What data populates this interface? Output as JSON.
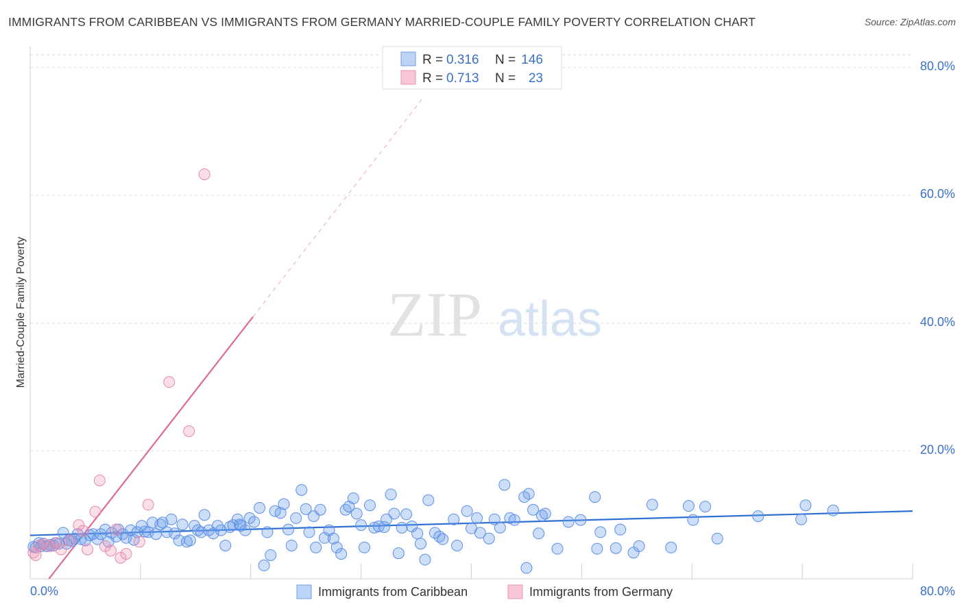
{
  "title": "IMMIGRANTS FROM CARIBBEAN VS IMMIGRANTS FROM GERMANY MARRIED-COUPLE FAMILY POVERTY CORRELATION CHART",
  "source": "Source: ZipAtlas.com",
  "watermark": {
    "zip": "ZIP",
    "atlas": "atlas"
  },
  "colors": {
    "blue": "#5b8ee6",
    "blue_fill": "rgba(110,160,235,0.35)",
    "blue_line": "#2f6fd4",
    "pink": "#e58aa8",
    "pink_fill": "rgba(240,150,180,0.30)",
    "pink_line": "#e06890",
    "tick_text": "#3a6fc9",
    "grid": "#dddddd"
  },
  "legend_box": {
    "rows": [
      {
        "r_label": "R =",
        "r_value": "0.316",
        "n_label": "N =",
        "n_value": "146"
      },
      {
        "r_label": "R =",
        "r_value": "0.713",
        "n_label": "N =",
        "n_value": "23"
      }
    ]
  },
  "chart_data": {
    "type": "scatter",
    "title": "IMMIGRANTS FROM CARIBBEAN VS IMMIGRANTS FROM GERMANY MARRIED-COUPLE FAMILY POVERTY CORRELATION CHART",
    "xlabel": "",
    "ylabel": "Married-Couple Family Poverty",
    "xlim": [
      0,
      80
    ],
    "ylim": [
      0,
      82
    ],
    "x_tick_labels": [
      "0.0%",
      "80.0%"
    ],
    "y_ticks": [
      20,
      40,
      60,
      80
    ],
    "y_tick_labels": [
      "20.0%",
      "40.0%",
      "60.0%",
      "80.0%"
    ],
    "legend": [
      "Immigrants from Caribbean",
      "Immigrants from Germany"
    ],
    "series": [
      {
        "name": "Immigrants from Caribbean",
        "r": 0.316,
        "n": 146,
        "trend": {
          "x0": 0,
          "y0": 6.8,
          "x1": 80,
          "y1": 10.6
        },
        "points": [
          [
            0.3,
            5.0
          ],
          [
            0.5,
            4.9
          ],
          [
            0.8,
            5.6
          ],
          [
            1.0,
            5.1
          ],
          [
            1.2,
            5.5
          ],
          [
            1.5,
            5.1
          ],
          [
            1.8,
            5.3
          ],
          [
            2.1,
            5.2
          ],
          [
            2.3,
            5.6
          ],
          [
            2.6,
            5.5
          ],
          [
            3.0,
            7.2
          ],
          [
            3.3,
            5.5
          ],
          [
            3.5,
            6.0
          ],
          [
            3.8,
            5.9
          ],
          [
            4.0,
            6.3
          ],
          [
            4.3,
            7.0
          ],
          [
            4.6,
            6.2
          ],
          [
            5.0,
            6.0
          ],
          [
            5.4,
            6.8
          ],
          [
            5.7,
            7.0
          ],
          [
            6.1,
            6.2
          ],
          [
            6.4,
            7.0
          ],
          [
            6.8,
            7.7
          ],
          [
            7.1,
            5.8
          ],
          [
            7.4,
            7.2
          ],
          [
            7.8,
            6.6
          ],
          [
            8.0,
            7.7
          ],
          [
            8.4,
            7.0
          ],
          [
            8.7,
            6.4
          ],
          [
            9.1,
            7.6
          ],
          [
            9.4,
            6.1
          ],
          [
            9.7,
            7.3
          ],
          [
            10.1,
            8.3
          ],
          [
            10.4,
            7.4
          ],
          [
            10.7,
            7.3
          ],
          [
            11.1,
            8.8
          ],
          [
            11.4,
            7.0
          ],
          [
            11.8,
            8.5
          ],
          [
            12.0,
            8.8
          ],
          [
            12.4,
            7.3
          ],
          [
            12.8,
            9.3
          ],
          [
            13.1,
            7.1
          ],
          [
            13.5,
            6.0
          ],
          [
            13.8,
            8.5
          ],
          [
            14.2,
            5.8
          ],
          [
            14.5,
            6.0
          ],
          [
            14.9,
            8.3
          ],
          [
            15.2,
            7.6
          ],
          [
            15.5,
            7.3
          ],
          [
            15.8,
            10.0
          ],
          [
            16.2,
            7.6
          ],
          [
            16.6,
            7.1
          ],
          [
            17.0,
            8.3
          ],
          [
            17.3,
            7.6
          ],
          [
            17.7,
            5.2
          ],
          [
            18.1,
            8.1
          ],
          [
            18.4,
            8.4
          ],
          [
            18.8,
            9.3
          ],
          [
            19.1,
            8.3
          ],
          [
            19.5,
            7.6
          ],
          [
            19.9,
            9.5
          ],
          [
            20.3,
            8.9
          ],
          [
            20.8,
            11.1
          ],
          [
            21.2,
            2.1
          ],
          [
            21.5,
            7.3
          ],
          [
            21.8,
            3.7
          ],
          [
            22.2,
            10.6
          ],
          [
            22.7,
            10.3
          ],
          [
            23.0,
            11.7
          ],
          [
            23.4,
            7.7
          ],
          [
            23.7,
            5.2
          ],
          [
            24.1,
            9.5
          ],
          [
            24.6,
            13.9
          ],
          [
            25.0,
            10.9
          ],
          [
            25.3,
            7.3
          ],
          [
            25.7,
            9.8
          ],
          [
            25.9,
            4.9
          ],
          [
            26.3,
            10.8
          ],
          [
            26.7,
            6.4
          ],
          [
            27.1,
            7.6
          ],
          [
            27.5,
            6.3
          ],
          [
            27.8,
            4.9
          ],
          [
            28.2,
            3.9
          ],
          [
            28.6,
            10.8
          ],
          [
            28.9,
            11.3
          ],
          [
            29.3,
            12.6
          ],
          [
            29.6,
            10.2
          ],
          [
            30.0,
            8.4
          ],
          [
            30.3,
            4.9
          ],
          [
            30.8,
            11.5
          ],
          [
            31.2,
            8.0
          ],
          [
            31.6,
            8.2
          ],
          [
            32.1,
            8.1
          ],
          [
            32.3,
            9.3
          ],
          [
            32.7,
            13.2
          ],
          [
            33.0,
            10.2
          ],
          [
            33.4,
            4.0
          ],
          [
            33.7,
            8.0
          ],
          [
            34.1,
            10.1
          ],
          [
            34.6,
            8.2
          ],
          [
            35.1,
            7.1
          ],
          [
            35.4,
            5.5
          ],
          [
            35.8,
            3.0
          ],
          [
            36.1,
            12.3
          ],
          [
            36.7,
            7.2
          ],
          [
            37.1,
            6.6
          ],
          [
            37.4,
            6.2
          ],
          [
            38.4,
            9.3
          ],
          [
            38.7,
            5.2
          ],
          [
            39.6,
            10.6
          ],
          [
            40.0,
            7.9
          ],
          [
            40.5,
            9.5
          ],
          [
            40.8,
            7.2
          ],
          [
            41.6,
            6.3
          ],
          [
            42.1,
            9.3
          ],
          [
            42.6,
            8.0
          ],
          [
            43.0,
            14.7
          ],
          [
            43.5,
            9.5
          ],
          [
            43.9,
            9.2
          ],
          [
            44.8,
            12.8
          ],
          [
            45.2,
            13.3
          ],
          [
            45.6,
            10.8
          ],
          [
            46.1,
            7.1
          ],
          [
            46.4,
            9.9
          ],
          [
            46.7,
            10.2
          ],
          [
            47.8,
            4.7
          ],
          [
            48.8,
            8.9
          ],
          [
            49.9,
            9.2
          ],
          [
            51.2,
            12.8
          ],
          [
            51.4,
            4.7
          ],
          [
            51.7,
            7.3
          ],
          [
            53.1,
            4.8
          ],
          [
            53.5,
            7.7
          ],
          [
            54.7,
            4.1
          ],
          [
            55.2,
            5.1
          ],
          [
            56.4,
            11.6
          ],
          [
            58.1,
            4.9
          ],
          [
            59.7,
            11.4
          ],
          [
            60.1,
            9.2
          ],
          [
            61.2,
            11.3
          ],
          [
            62.3,
            6.3
          ],
          [
            66.0,
            9.8
          ],
          [
            69.9,
            9.3
          ],
          [
            70.3,
            11.5
          ],
          [
            72.8,
            10.7
          ],
          [
            45.0,
            1.7
          ],
          [
            19.0,
            8.5
          ]
        ]
      },
      {
        "name": "Immigrants from Germany",
        "r": 0.713,
        "n": 23,
        "trend": {
          "x0": 1.7,
          "y0": 0,
          "x1": 20.2,
          "y1": 41.0
        },
        "trend_extension": {
          "x0": 20.2,
          "y0": 41.0,
          "x1": 35.5,
          "y1": 75.0
        },
        "points": [
          [
            0.3,
            4.1
          ],
          [
            0.5,
            3.7
          ],
          [
            0.8,
            5.2
          ],
          [
            1.3,
            5.4
          ],
          [
            1.8,
            5.1
          ],
          [
            2.4,
            5.6
          ],
          [
            2.8,
            4.6
          ],
          [
            3.6,
            6.0
          ],
          [
            4.4,
            8.4
          ],
          [
            4.8,
            7.5
          ],
          [
            5.2,
            4.6
          ],
          [
            5.9,
            10.5
          ],
          [
            6.3,
            15.4
          ],
          [
            6.8,
            5.1
          ],
          [
            7.3,
            4.4
          ],
          [
            7.8,
            7.7
          ],
          [
            8.2,
            3.3
          ],
          [
            8.7,
            3.9
          ],
          [
            9.9,
            5.8
          ],
          [
            10.7,
            11.6
          ],
          [
            12.6,
            30.8
          ],
          [
            14.4,
            23.1
          ],
          [
            15.8,
            63.3
          ]
        ]
      }
    ]
  }
}
